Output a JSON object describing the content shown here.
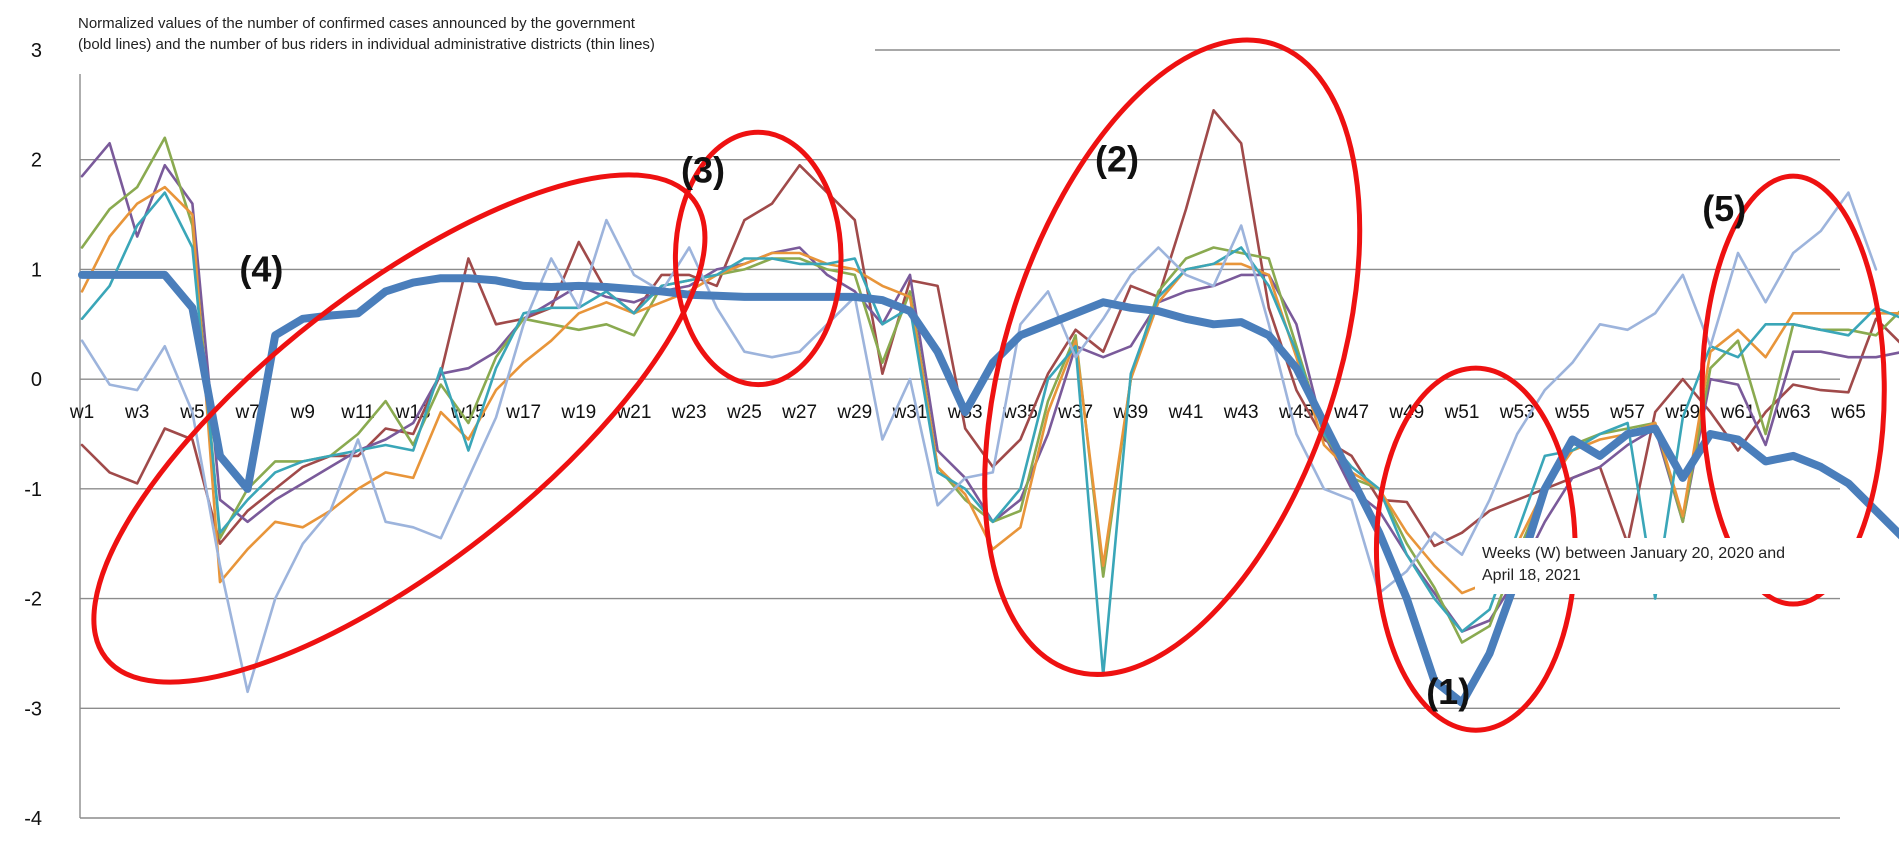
{
  "chart_data": {
    "type": "line",
    "title_lines": [
      "Normalized values of the number of confirmed cases announced by the government",
      "(bold lines) and the number of bus riders in individual administrative districts (thin lines)"
    ],
    "xlabel_lines": [
      "Weeks (W) between January 20, 2020 and",
      "April 18, 2021"
    ],
    "ylim": [
      -4,
      3
    ],
    "yticks": [
      3,
      2,
      1,
      0,
      -1,
      -2,
      -3,
      -4
    ],
    "x_tick_labels": [
      "w1",
      "w3",
      "w5",
      "w7",
      "w9",
      "w11",
      "w13",
      "w15",
      "w17",
      "w19",
      "w21",
      "w23",
      "w25",
      "w27",
      "w29",
      "w31",
      "w33",
      "w35",
      "w37",
      "w39",
      "w41",
      "w43",
      "w45",
      "w47",
      "w49",
      "w51",
      "w53",
      "w55",
      "w57",
      "w59",
      "w61",
      "w63",
      "w65"
    ],
    "grid": "horizontal",
    "colors": {
      "confirmed_cases": "#4a7ebb",
      "dark_red": "#a04a4a",
      "purple": "#7a5a9a",
      "green": "#8aaa50",
      "orange": "#e8953a",
      "teal": "#3aa6b8",
      "light_blue": "#9db4dc",
      "annotation": "#ee1111"
    },
    "series": [
      {
        "key": "confirmed_cases",
        "values": [
          0.95,
          0.95,
          0.95,
          0.95,
          0.65,
          -0.7,
          -1.0,
          0.4,
          0.55,
          0.58,
          0.6,
          0.8,
          0.88,
          0.92,
          0.92,
          0.9,
          0.85,
          0.84,
          0.85,
          0.84,
          0.82,
          0.8,
          0.77,
          0.76,
          0.75,
          0.75,
          0.75,
          0.75,
          0.75,
          0.72,
          0.62,
          0.25,
          -0.3,
          0.15,
          0.4,
          0.5,
          0.6,
          0.7,
          0.65,
          0.62,
          0.55,
          0.5,
          0.52,
          0.4,
          0.1,
          -0.4,
          -0.9,
          -1.4,
          -2.0,
          -2.75,
          -2.95,
          -2.5,
          -1.8,
          -1.0,
          -0.55,
          -0.7,
          -0.5,
          -0.45,
          -0.9,
          -0.5,
          -0.55,
          -0.75,
          -0.7,
          -0.8,
          -0.95,
          -1.2,
          -1.45,
          -1.55
        ]
      },
      {
        "key": "dark_red",
        "values": [
          -0.6,
          -0.85,
          -0.95,
          -0.45,
          -0.55,
          -1.5,
          -1.2,
          -1.0,
          -0.8,
          -0.7,
          -0.7,
          -0.45,
          -0.5,
          0.05,
          1.1,
          0.5,
          0.55,
          0.65,
          1.25,
          0.8,
          0.6,
          0.95,
          0.95,
          0.85,
          1.45,
          1.6,
          1.95,
          1.7,
          1.45,
          0.05,
          0.9,
          0.85,
          -0.45,
          -0.8,
          -0.55,
          0.05,
          0.45,
          0.25,
          0.85,
          0.75,
          1.55,
          2.45,
          2.15,
          0.65,
          -0.1,
          -0.55,
          -0.7,
          -1.1,
          -1.12,
          -1.52,
          -1.4,
          -1.2,
          -1.1,
          -1.0,
          -0.9,
          -0.8,
          -1.5,
          -0.3,
          0.0,
          -0.3,
          -0.65,
          -0.3,
          -0.05,
          -0.1,
          -0.12,
          0.55,
          0.3
        ]
      },
      {
        "key": "purple",
        "values": [
          1.85,
          2.15,
          1.3,
          1.95,
          1.6,
          -1.1,
          -1.3,
          -1.1,
          -0.95,
          -0.8,
          -0.65,
          -0.55,
          -0.4,
          0.05,
          0.1,
          0.25,
          0.55,
          0.7,
          0.85,
          0.75,
          0.7,
          0.8,
          0.85,
          1.0,
          1.05,
          1.15,
          1.2,
          0.95,
          0.8,
          0.5,
          0.95,
          -0.65,
          -0.9,
          -1.3,
          -1.1,
          -0.5,
          0.3,
          0.2,
          0.3,
          0.7,
          0.8,
          0.85,
          0.95,
          0.95,
          0.5,
          -0.5,
          -1.0,
          -1.2,
          -1.6,
          -1.95,
          -2.3,
          -2.2,
          -1.8,
          -1.3,
          -0.9,
          -0.8,
          -0.6,
          -0.45,
          -1.3,
          0.0,
          -0.05,
          -0.6,
          0.25,
          0.25,
          0.2,
          0.2,
          0.25,
          0.15
        ]
      },
      {
        "key": "green",
        "values": [
          1.2,
          1.55,
          1.75,
          2.2,
          1.4,
          -1.45,
          -1.0,
          -0.75,
          -0.75,
          -0.7,
          -0.5,
          -0.2,
          -0.6,
          -0.05,
          -0.4,
          0.2,
          0.55,
          0.5,
          0.45,
          0.5,
          0.4,
          0.85,
          0.9,
          0.95,
          1.0,
          1.1,
          1.1,
          1.0,
          0.95,
          0.15,
          0.8,
          -0.8,
          -1.1,
          -1.3,
          -1.2,
          -0.2,
          0.4,
          -1.8,
          0.0,
          0.8,
          1.1,
          1.2,
          1.15,
          1.1,
          0.3,
          -0.5,
          -0.9,
          -1.0,
          -1.5,
          -1.9,
          -2.4,
          -2.25,
          -1.6,
          -1.0,
          -0.6,
          -0.5,
          -0.45,
          -0.4,
          -1.3,
          0.1,
          0.35,
          -0.5,
          0.5,
          0.45,
          0.45,
          0.4,
          0.65,
          0.3
        ]
      },
      {
        "key": "orange",
        "values": [
          0.8,
          1.3,
          1.6,
          1.75,
          1.5,
          -1.85,
          -1.55,
          -1.3,
          -1.35,
          -1.2,
          -1.0,
          -0.85,
          -0.9,
          -0.3,
          -0.55,
          -0.1,
          0.15,
          0.35,
          0.6,
          0.7,
          0.6,
          0.7,
          0.8,
          0.95,
          1.05,
          1.15,
          1.15,
          1.05,
          1.0,
          0.85,
          0.75,
          -0.8,
          -1.05,
          -1.55,
          -1.35,
          -0.3,
          0.35,
          -1.7,
          0.0,
          0.7,
          1.0,
          1.05,
          1.05,
          0.95,
          0.2,
          -0.6,
          -0.85,
          -1.0,
          -1.4,
          -1.7,
          -1.95,
          -1.85,
          -1.5,
          -1.0,
          -0.65,
          -0.55,
          -0.5,
          -0.4,
          -1.25,
          0.25,
          0.45,
          0.2,
          0.6,
          0.6,
          0.6,
          0.6,
          0.6,
          0.4
        ]
      },
      {
        "key": "teal",
        "values": [
          0.55,
          0.85,
          1.4,
          1.7,
          1.2,
          -1.4,
          -1.1,
          -0.85,
          -0.75,
          -0.7,
          -0.65,
          -0.6,
          -0.65,
          0.1,
          -0.65,
          0.1,
          0.6,
          0.65,
          0.65,
          0.8,
          0.6,
          0.85,
          0.9,
          0.95,
          1.1,
          1.1,
          1.05,
          1.05,
          1.1,
          0.5,
          0.65,
          -0.85,
          -1.0,
          -1.3,
          -1.0,
          0.0,
          0.3,
          -2.7,
          0.05,
          0.75,
          1.0,
          1.05,
          1.2,
          0.85,
          0.25,
          -0.5,
          -0.8,
          -1.0,
          -1.6,
          -2.0,
          -2.3,
          -2.1,
          -1.4,
          -0.7,
          -0.65,
          -0.5,
          -0.4,
          -2.0,
          -0.35,
          0.3,
          0.2,
          0.5,
          0.5,
          0.45,
          0.4,
          0.65,
          0.55
        ]
      },
      {
        "key": "light_blue",
        "values": [
          0.35,
          -0.05,
          -0.1,
          0.3,
          -0.3,
          -1.7,
          -2.85,
          -2.0,
          -1.5,
          -1.2,
          -0.55,
          -1.3,
          -1.35,
          -1.45,
          -0.9,
          -0.35,
          0.5,
          1.1,
          0.65,
          1.45,
          0.95,
          0.8,
          1.2,
          0.65,
          0.25,
          0.2,
          0.25,
          0.5,
          0.75,
          -0.55,
          0.0,
          -1.15,
          -0.9,
          -0.85,
          0.5,
          0.8,
          0.2,
          0.55,
          0.95,
          1.2,
          0.95,
          0.85,
          1.4,
          0.5,
          -0.5,
          -1.0,
          -1.1,
          -1.95,
          -1.75,
          -1.4,
          -1.6,
          -1.1,
          -0.5,
          -0.1,
          0.15,
          0.5,
          0.45,
          0.6,
          0.95,
          0.3,
          1.15,
          0.7,
          1.15,
          1.35,
          1.7,
          1.0
        ]
      }
    ],
    "annotations": [
      {
        "label": "(1)",
        "x": 50.5,
        "y": -2.85
      },
      {
        "label": "(2)",
        "x": 38.5,
        "y": 2.0
      },
      {
        "label": "(3)",
        "x": 23.5,
        "y": 1.9
      },
      {
        "label": "(4)",
        "x": 7.5,
        "y": 1.0
      },
      {
        "label": "(5)",
        "x": 60.5,
        "y": 1.55
      }
    ],
    "ellipses": [
      {
        "cx": 51.5,
        "cy": -1.55,
        "rx": 3.6,
        "ry": 1.65,
        "rotate": 0
      },
      {
        "cx": 40.5,
        "cy": 0.2,
        "rx": 6.0,
        "ry": 3.0,
        "rotate": 18
      },
      {
        "cx": 25.5,
        "cy": 1.1,
        "rx": 3.0,
        "ry": 1.15,
        "rotate": 0
      },
      {
        "cx": 12.5,
        "cy": -0.45,
        "rx": 13.5,
        "ry": 1.25,
        "rotate": -38
      },
      {
        "cx": 63.0,
        "cy": -0.1,
        "rx": 3.3,
        "ry": 1.95,
        "rotate": 0
      }
    ]
  }
}
